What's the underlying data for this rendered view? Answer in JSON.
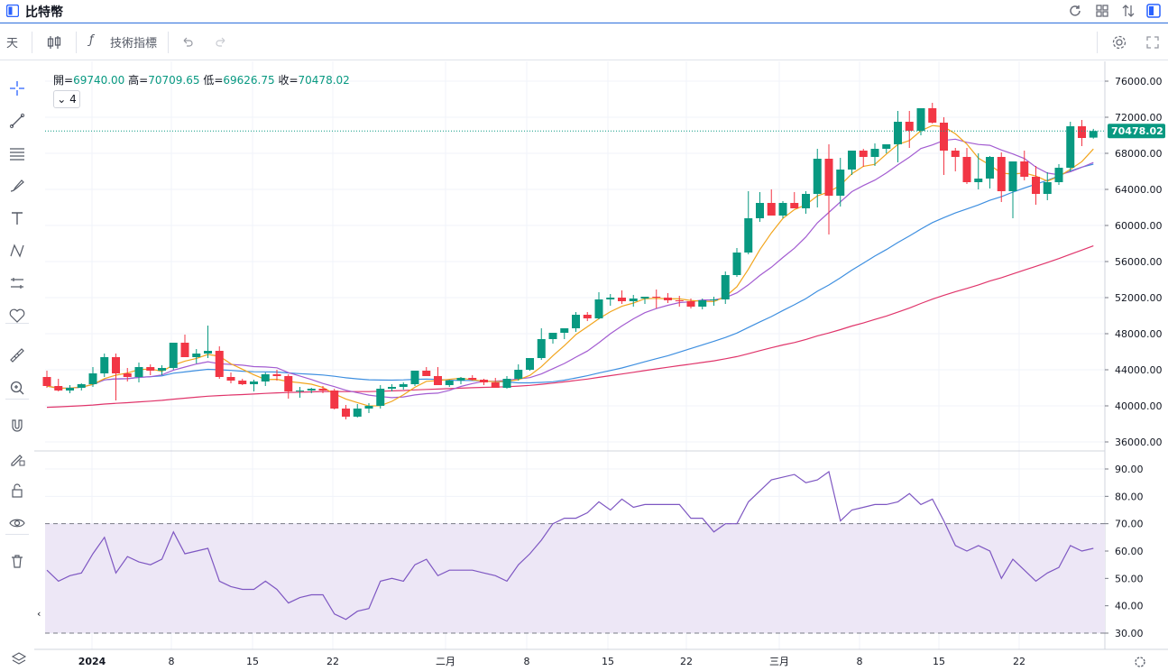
{
  "window": {
    "title": "比特幣"
  },
  "toolbar": {
    "interval_label": "天",
    "indicators_label": "技術指標"
  },
  "legend": {
    "open_label": "開=",
    "open": "69740.00",
    "high_label": "高=",
    "high": "70709.65",
    "low_label": "低=",
    "low": "69626.75",
    "close_label": "收=",
    "close": "70478.02",
    "indicator_count": "4"
  },
  "colors": {
    "up": "#089981",
    "down": "#f23645",
    "ma5": "#f2a51d",
    "ma10": "#a35cd1",
    "ma30": "#3e8fe0",
    "ma60": "#e0356b",
    "rsi": "#7e57c2",
    "rsi_band": "#ede7f6"
  },
  "icons": [
    "crosshair-icon",
    "trendline-icon",
    "fib-icon",
    "brush-icon",
    "text-icon",
    "pattern-icon",
    "forecast-icon",
    "heart-icon",
    "ruler-icon",
    "zoom-icon",
    "magnet-icon",
    "lock-draw-icon",
    "unlock-icon",
    "eye-icon",
    "trash-icon"
  ],
  "chart_data": {
    "type": "candlestick",
    "price_axis": {
      "ticks": [
        "76000.00",
        "72000.00",
        "68000.00",
        "64000.00",
        "60000.00",
        "56000.00",
        "52000.00",
        "48000.00",
        "44000.00",
        "40000.00",
        "36000.00"
      ],
      "last_price": "70478.02"
    },
    "rsi_axis": {
      "ticks": [
        "90.00",
        "80.00",
        "70.00",
        "60.00",
        "50.00",
        "40.00",
        "30.00"
      ],
      "overbought": 70,
      "oversold": 30
    },
    "time_axis": [
      "2024",
      "8",
      "15",
      "22",
      "二月",
      "8",
      "15",
      "22",
      "三月",
      "8",
      "15",
      "22"
    ],
    "candles": [
      [
        43200,
        43900,
        42000,
        42200
      ],
      [
        42200,
        43000,
        41600,
        41700
      ],
      [
        41700,
        42300,
        41400,
        42000
      ],
      [
        42000,
        42500,
        41700,
        42400
      ],
      [
        42400,
        44300,
        42100,
        43600
      ],
      [
        43600,
        45800,
        43200,
        45400
      ],
      [
        45400,
        45800,
        40600,
        43600
      ],
      [
        43600,
        44200,
        42700,
        43200
      ],
      [
        43200,
        44800,
        42600,
        44300
      ],
      [
        44300,
        44600,
        43400,
        43900
      ],
      [
        43900,
        44500,
        43400,
        44200
      ],
      [
        44200,
        46700,
        44000,
        47000
      ],
      [
        47000,
        47900,
        45600,
        45400
      ],
      [
        45400,
        46300,
        44700,
        45800
      ],
      [
        45800,
        48900,
        45300,
        46100
      ],
      [
        46100,
        46600,
        43000,
        43200
      ],
      [
        43200,
        43700,
        42500,
        42800
      ],
      [
        42800,
        43000,
        42300,
        42400
      ],
      [
        42400,
        42900,
        41600,
        42700
      ],
      [
        42700,
        43700,
        42200,
        43500
      ],
      [
        43500,
        44000,
        42800,
        43300
      ],
      [
        43300,
        43500,
        40800,
        41600
      ],
      [
        41600,
        42100,
        40900,
        41700
      ],
      [
        41700,
        42000,
        41400,
        41900
      ],
      [
        41900,
        42200,
        41400,
        41700
      ],
      [
        41700,
        41900,
        39600,
        39700
      ],
      [
        39700,
        40100,
        38500,
        38800
      ],
      [
        38800,
        40200,
        38700,
        39700
      ],
      [
        39700,
        40300,
        39200,
        40000
      ],
      [
        40000,
        42300,
        39700,
        41900
      ],
      [
        41900,
        42400,
        41600,
        42100
      ],
      [
        42100,
        42600,
        41800,
        42400
      ],
      [
        42400,
        43900,
        42200,
        43900
      ],
      [
        43900,
        44300,
        43500,
        43300
      ],
      [
        43300,
        44300,
        42500,
        42300
      ],
      [
        42300,
        42900,
        42100,
        42800
      ],
      [
        42800,
        43200,
        42400,
        43100
      ],
      [
        43100,
        43400,
        42800,
        42900
      ],
      [
        42900,
        43000,
        42300,
        42600
      ],
      [
        42600,
        43100,
        42200,
        42000
      ],
      [
        42000,
        43300,
        41900,
        43000
      ],
      [
        43000,
        44600,
        42800,
        44000
      ],
      [
        44000,
        45300,
        43900,
        45300
      ],
      [
        45300,
        48600,
        45100,
        47400
      ],
      [
        47400,
        48000,
        46900,
        48100
      ],
      [
        48100,
        48600,
        47400,
        48600
      ],
      [
        48600,
        50400,
        48200,
        50100
      ],
      [
        50100,
        50400,
        49400,
        49700
      ],
      [
        49700,
        52600,
        49600,
        51800
      ],
      [
        51800,
        52400,
        51100,
        52000
      ],
      [
        52000,
        52800,
        51300,
        51600
      ],
      [
        51600,
        52300,
        51000,
        51900
      ],
      [
        51900,
        52100,
        51300,
        52100
      ],
      [
        52100,
        52900,
        50800,
        52000
      ],
      [
        52000,
        52500,
        51400,
        51700
      ],
      [
        51700,
        52200,
        51000,
        51600
      ],
      [
        51600,
        51900,
        50800,
        51000
      ],
      [
        51000,
        51900,
        50700,
        51700
      ],
      [
        51700,
        52100,
        51100,
        51800
      ],
      [
        51800,
        54900,
        51300,
        54500
      ],
      [
        54500,
        57500,
        54300,
        57000
      ],
      [
        57000,
        63800,
        56800,
        60800
      ],
      [
        60800,
        63700,
        60400,
        62500
      ],
      [
        62500,
        64000,
        61200,
        61100
      ],
      [
        61100,
        62700,
        60800,
        62500
      ],
      [
        62500,
        63700,
        61900,
        61900
      ],
      [
        61900,
        63800,
        61300,
        63500
      ],
      [
        63500,
        68500,
        62000,
        67400
      ],
      [
        67400,
        69000,
        59000,
        63300
      ],
      [
        63300,
        67500,
        62100,
        66200
      ],
      [
        66200,
        68100,
        65600,
        68300
      ],
      [
        68300,
        68500,
        66500,
        67600
      ],
      [
        67600,
        69100,
        66600,
        68500
      ],
      [
        68500,
        69000,
        68000,
        69000
      ],
      [
        69000,
        72700,
        67000,
        71500
      ],
      [
        71500,
        72700,
        68600,
        70500
      ],
      [
        70500,
        72700,
        70000,
        73000
      ],
      [
        73000,
        73600,
        71300,
        71400
      ],
      [
        71400,
        72000,
        65600,
        68300
      ],
      [
        68300,
        68600,
        66000,
        67600
      ],
      [
        67600,
        68600,
        64600,
        64800
      ],
      [
        64800,
        68000,
        64000,
        65200
      ],
      [
        65200,
        67700,
        64100,
        67600
      ],
      [
        67600,
        68100,
        62600,
        63800
      ],
      [
        63800,
        67000,
        60800,
        67100
      ],
      [
        67100,
        68300,
        65000,
        65400
      ],
      [
        65400,
        66600,
        62300,
        63500
      ],
      [
        63500,
        65900,
        62800,
        64800
      ],
      [
        64800,
        66800,
        64500,
        66400
      ],
      [
        66400,
        71500,
        66000,
        71000
      ],
      [
        71000,
        71700,
        68800,
        69700
      ],
      [
        69740,
        70710,
        69627,
        70478
      ]
    ],
    "rsi": [
      53,
      49,
      51,
      52,
      59,
      65,
      52,
      58,
      56,
      55,
      57,
      67,
      59,
      60,
      61,
      49,
      47,
      46,
      46,
      49,
      46,
      41,
      43,
      44,
      44,
      37,
      35,
      38,
      39,
      49,
      50,
      49,
      55,
      57,
      51,
      53,
      53,
      53,
      52,
      51,
      49,
      55,
      59,
      64,
      70,
      72,
      72,
      74,
      78,
      75,
      79,
      76,
      77,
      77,
      77,
      77,
      72,
      72,
      67,
      70,
      70,
      78,
      82,
      86,
      87,
      88,
      85,
      86,
      89,
      71,
      75,
      76,
      77,
      77,
      78,
      81,
      77,
      79,
      71,
      62,
      60,
      62,
      60,
      50,
      57,
      53,
      49,
      52,
      54,
      62,
      60,
      61
    ]
  }
}
